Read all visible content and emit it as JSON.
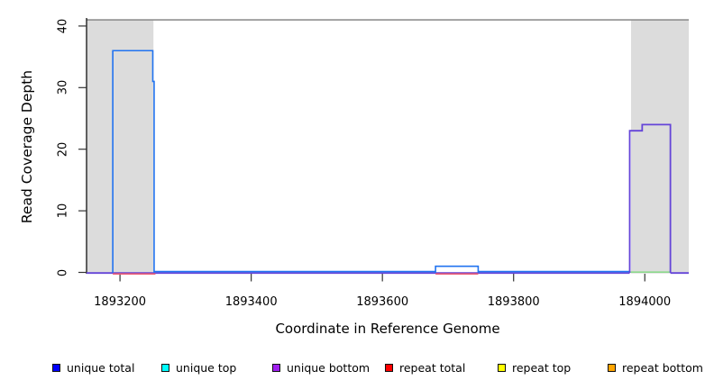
{
  "chart_data": {
    "type": "line",
    "subtype": "step-coverage",
    "title": "",
    "xlabel": "Coordinate in Reference Genome",
    "ylabel": "Read Coverage Depth",
    "x_domain": [
      1893149,
      1894067
    ],
    "y_domain": [
      0,
      41.6
    ],
    "x_tick_values": [
      1893200,
      1893400,
      1893600,
      1893800,
      1894000
    ],
    "x_tick_labels": [
      "1893200",
      "1893400",
      "1893600",
      "1893800",
      "1894000"
    ],
    "y_tick_values": [
      0,
      10,
      20,
      30,
      40
    ],
    "y_tick_labels": [
      "0",
      "10",
      "20",
      "30",
      "40"
    ],
    "grid": false,
    "legend_position": "bottom",
    "shaded_regions": [
      {
        "x1": 1893149,
        "x2": 1893251,
        "color": "#DCDCDC"
      },
      {
        "x1": 1893979,
        "x2": 1894067,
        "color": "#DCDCDC"
      }
    ],
    "max_depth_line": {
      "y": 41,
      "color": "#8F8F8F"
    },
    "series": [
      {
        "name": "unique total",
        "color": "#2173F0",
        "runs": [
          [
            [
              1893189,
              1893250,
              36
            ],
            [
              1893250,
              1893252,
              31
            ]
          ],
          [
            [
              1893681,
              1893746,
              1
            ]
          ]
        ],
        "baseline_segments": [
          [
            1893252,
            1893681
          ],
          [
            1893746,
            1893977
          ]
        ]
      },
      {
        "name": "unique bottom",
        "color": "#6444D8",
        "runs": [
          [
            [
              1893977,
              1893996,
              23
            ],
            [
              1893996,
              1894039,
              24
            ]
          ]
        ],
        "baseline_segments": [
          [
            1893149,
            1893977
          ],
          [
            1894039,
            1894067
          ]
        ]
      },
      {
        "name": "repeat total",
        "color": "#ED5C72",
        "runs": [],
        "baseline_segments": [
          [
            1893189,
            1893254
          ],
          [
            1893681,
            1893746
          ]
        ]
      },
      {
        "name": "green baseline segment",
        "color": "#8CD98C",
        "runs": [],
        "baseline_segments": [
          [
            1893978,
            1894039
          ]
        ]
      }
    ],
    "legend": [
      {
        "label": "unique total",
        "color": "#0000FF"
      },
      {
        "label": "unique top",
        "color": "#00FFFF"
      },
      {
        "label": "unique bottom",
        "color": "#A020F0"
      },
      {
        "label": "repeat total",
        "color": "#FF0000"
      },
      {
        "label": "repeat top",
        "color": "#FFFF00"
      },
      {
        "label": "repeat bottom",
        "color": "#FFA500"
      }
    ]
  }
}
